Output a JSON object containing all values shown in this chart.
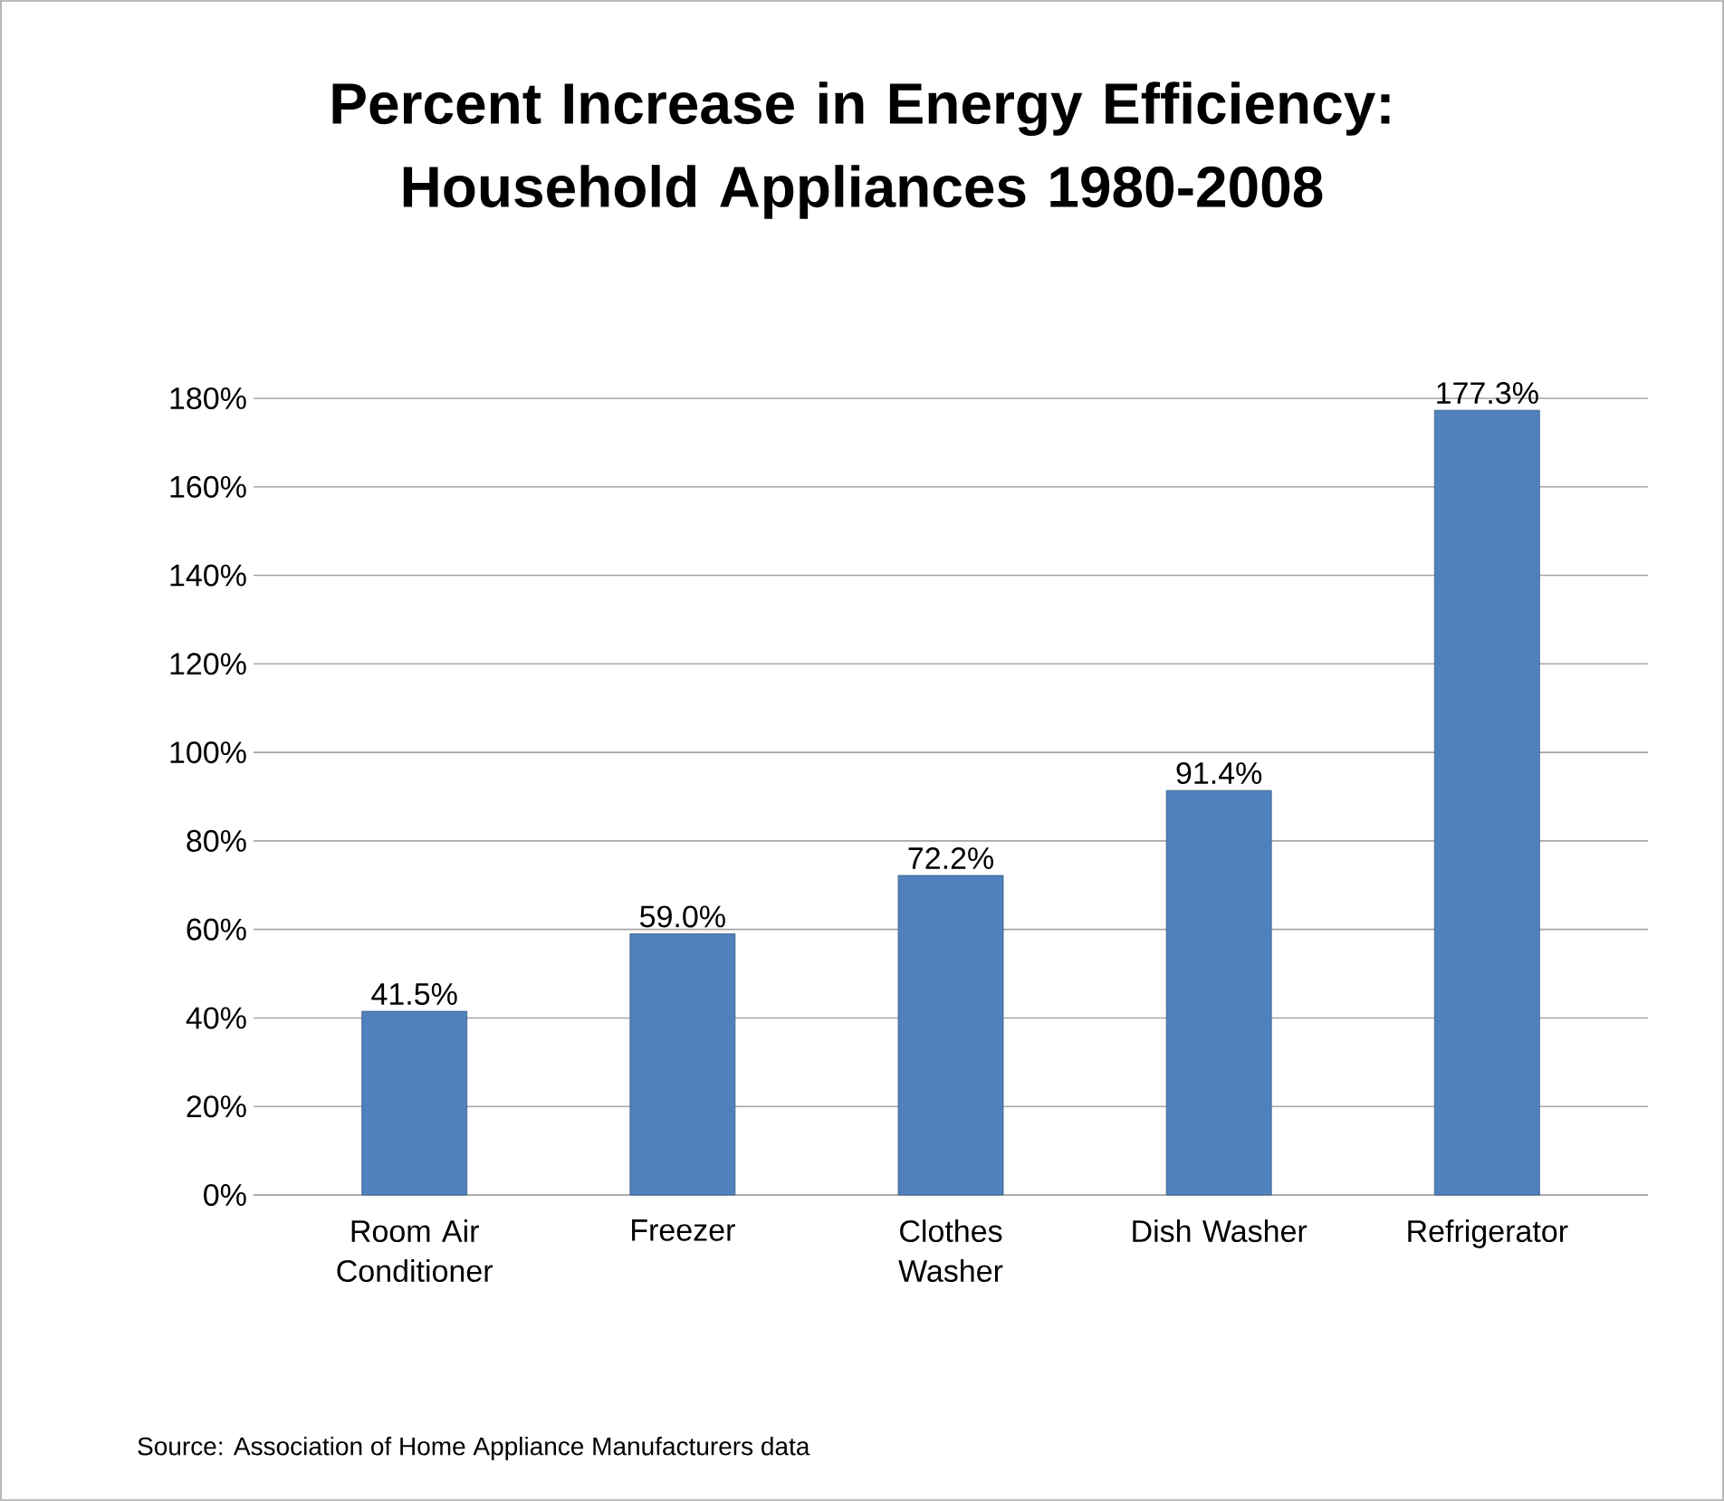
{
  "chart_data": {
    "type": "bar",
    "title": "Percent Increase in Energy Efficiency: Household Appliances 1980-2008",
    "categories": [
      "Room Air Conditioner",
      "Freezer",
      "Clothes Washer",
      "Dish Washer",
      "Refrigerator"
    ],
    "values": [
      41.5,
      59.0,
      72.2,
      91.4,
      177.3
    ],
    "value_labels": [
      "41.5%",
      "59.0%",
      "72.2%",
      "91.4%",
      "177.3%"
    ],
    "color": "#4f81bd",
    "ylim": [
      0,
      180
    ],
    "yticks": [
      {
        "value": 0,
        "label": "0%"
      },
      {
        "value": 20,
        "label": "20%"
      },
      {
        "value": 40,
        "label": "40%"
      },
      {
        "value": 60,
        "label": "60%"
      },
      {
        "value": 80,
        "label": "80%"
      },
      {
        "value": 100,
        "label": "100%"
      },
      {
        "value": 120,
        "label": "120%"
      },
      {
        "value": 140,
        "label": "140%"
      },
      {
        "value": 160,
        "label": "160%"
      },
      {
        "value": 180,
        "label": "180%"
      }
    ],
    "grid": "y",
    "annotations": [
      "Source: Association of Home Appliance Manufacturers data"
    ]
  }
}
